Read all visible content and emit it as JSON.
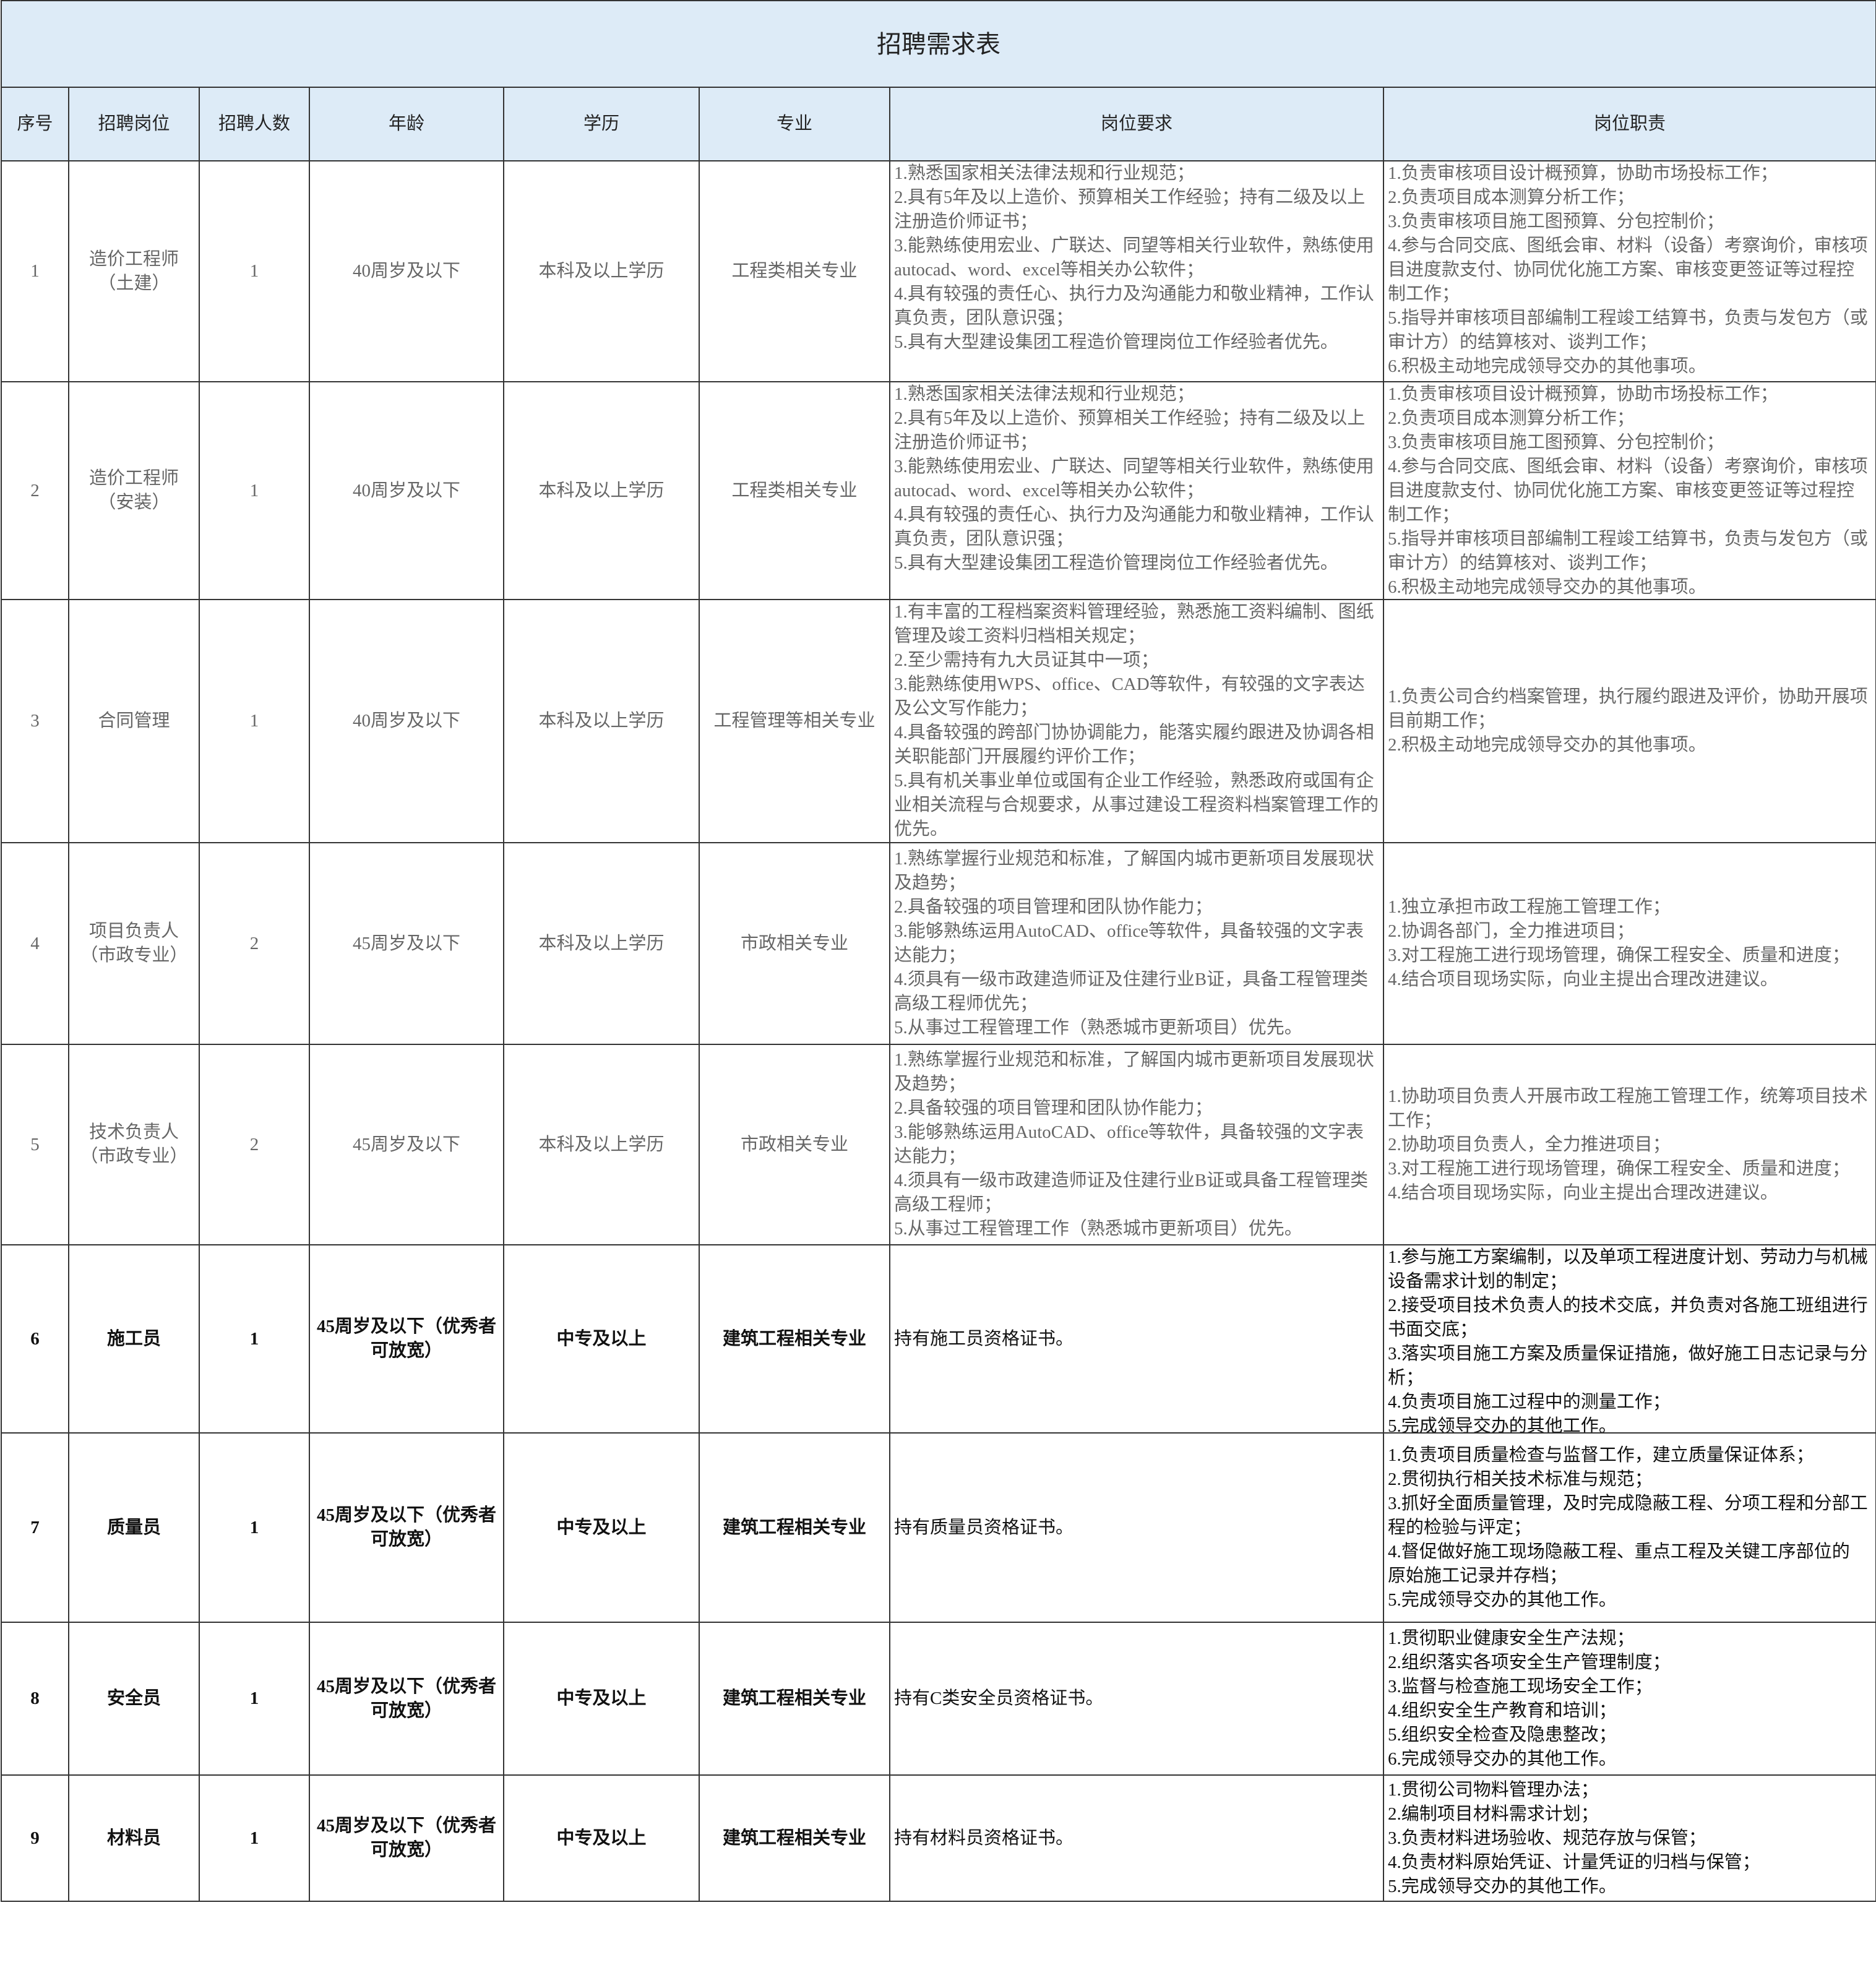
{
  "title": "招聘需求表",
  "headers": [
    "序号",
    "招聘岗位",
    "招聘人数",
    "年龄",
    "学历",
    "专业",
    "岗位要求",
    "岗位职责"
  ],
  "rows": [
    {
      "no": "1",
      "position": [
        "造价工程师",
        "（土建）"
      ],
      "count": "1",
      "age": "40周岁及以下",
      "education": "本科及以上学历",
      "major": "工程类相关专业",
      "requirements": [
        "1.熟悉国家相关法律法规和行业规范；",
        "2.具有5年及以上造价、预算相关工作经验；持有二级及以上注册造价师证书；",
        "3.能熟练使用宏业、广联达、同望等相关行业软件，熟练使用autocad、word、excel等相关办公软件；",
        "4.具有较强的责任心、执行力及沟通能力和敬业精神，工作认真负责，团队意识强；",
        "5.具有大型建设集团工程造价管理岗位工作经验者优先。"
      ],
      "duties": [
        "1.负责审核项目设计概预算，协助市场投标工作；",
        "2.负责项目成本测算分析工作；",
        "3.负责审核项目施工图预算、分包控制价；",
        "4.参与合同交底、图纸会审、材料（设备）考察询价，审核项目进度款支付、协同优化施工方案、审核变更签证等过程控制工作；",
        "5.指导并审核项目部编制工程竣工结算书，负责与发包方（或审计方）的结算核对、谈判工作；",
        "6.积极主动地完成领导交办的其他事项。"
      ]
    },
    {
      "no": "2",
      "position": [
        "造价工程师",
        "（安装）"
      ],
      "count": "1",
      "age": "40周岁及以下",
      "education": "本科及以上学历",
      "major": "工程类相关专业",
      "requirements": [
        "1.熟悉国家相关法律法规和行业规范；",
        "2.具有5年及以上造价、预算相关工作经验；持有二级及以上注册造价师证书；",
        "3.能熟练使用宏业、广联达、同望等相关行业软件，熟练使用autocad、word、excel等相关办公软件；",
        "4.具有较强的责任心、执行力及沟通能力和敬业精神，工作认真负责，团队意识强；",
        "5.具有大型建设集团工程造价管理岗位工作经验者优先。"
      ],
      "duties": [
        "1.负责审核项目设计概预算，协助市场投标工作；",
        "2.负责项目成本测算分析工作；",
        "3.负责审核项目施工图预算、分包控制价；",
        "4.参与合同交底、图纸会审、材料（设备）考察询价，审核项目进度款支付、协同优化施工方案、审核变更签证等过程控制工作；",
        "5.指导并审核项目部编制工程竣工结算书，负责与发包方（或审计方）的结算核对、谈判工作；",
        "6.积极主动地完成领导交办的其他事项。"
      ]
    },
    {
      "no": "3",
      "position": [
        "合同管理"
      ],
      "count": "1",
      "age": "40周岁及以下",
      "education": "本科及以上学历",
      "major": "工程管理等相关专业",
      "requirements": [
        "1.有丰富的工程档案资料管理经验，熟悉施工资料编制、图纸管理及竣工资料归档相关规定；",
        "2.至少需持有九大员证其中一项；",
        "3.能熟练使用WPS、office、CAD等软件，有较强的文字表达及公文写作能力；",
        "4.具备较强的跨部门协协调能力，能落实履约跟进及协调各相关职能部门开展履约评价工作；",
        "5.具有机关事业单位或国有企业工作经验，熟悉政府或国有企业相关流程与合规要求，从事过建设工程资料档案管理工作的优先。"
      ],
      "duties": [
        "1.负责公司合约档案管理，执行履约跟进及评价，协助开展项目前期工作；",
        "2.积极主动地完成领导交办的其他事项。"
      ]
    },
    {
      "no": "4",
      "position": [
        "项目负责人",
        "（市政专业）"
      ],
      "count": "2",
      "age": "45周岁及以下",
      "education": "本科及以上学历",
      "major": "市政相关专业",
      "requirements": [
        "1.熟练掌握行业规范和标准，了解国内城市更新项目发展现状及趋势；",
        "2.具备较强的项目管理和团队协作能力；",
        "3.能够熟练运用AutoCAD、office等软件，具备较强的文字表达能力；",
        "4.须具有一级市政建造师证及住建行业B证，具备工程管理类高级工程师优先；",
        "5.从事过工程管理工作（熟悉城市更新项目）优先。"
      ],
      "duties": [
        "1.独立承担市政工程施工管理工作；",
        "2.协调各部门，全力推进项目；",
        "3.对工程施工进行现场管理，确保工程安全、质量和进度；",
        "4.结合项目现场实际，向业主提出合理改进建议。"
      ]
    },
    {
      "no": "5",
      "position": [
        "技术负责人",
        "（市政专业）"
      ],
      "count": "2",
      "age": "45周岁及以下",
      "education": "本科及以上学历",
      "major": "市政相关专业",
      "requirements": [
        "1.熟练掌握行业规范和标准，了解国内城市更新项目发展现状及趋势；",
        "2.具备较强的项目管理和团队协作能力；",
        "3.能够熟练运用AutoCAD、office等软件，具备较强的文字表达能力；",
        "4.须具有一级市政建造师证及住建行业B证或具备工程管理类高级工程师；",
        "5.从事过工程管理工作（熟悉城市更新项目）优先。"
      ],
      "duties": [
        "1.协助项目负责人开展市政工程施工管理工作，统筹项目技术工作；",
        "2.协助项目负责人，全力推进项目；",
        "3.对工程施工进行现场管理，确保工程安全、质量和进度；",
        "4.结合项目现场实际，向业主提出合理改进建议。"
      ]
    },
    {
      "no": "6",
      "position": [
        "施工员"
      ],
      "count": "1",
      "age": "45周岁及以下（优秀者可放宽）",
      "education": "中专及以上",
      "major": "建筑工程相关专业",
      "requirements": [
        "持有施工员资格证书。"
      ],
      "duties": [
        "1.参与施工方案编制，以及单项工程进度计划、劳动力与机械设备需求计划的制定；",
        "2.接受项目技术负责人的技术交底，并负责对各施工班组进行书面交底；",
        "3.落实项目施工方案及质量保证措施，做好施工日志记录与分析；",
        "4.负责项目施工过程中的测量工作；",
        "5.完成领导交办的其他工作。"
      ]
    },
    {
      "no": "7",
      "position": [
        "质量员"
      ],
      "count": "1",
      "age": "45周岁及以下（优秀者可放宽）",
      "education": "中专及以上",
      "major": "建筑工程相关专业",
      "requirements": [
        "持有质量员资格证书。"
      ],
      "duties": [
        "1.负责项目质量检查与监督工作，建立质量保证体系；",
        "2.贯彻执行相关技术标准与规范；",
        "3.抓好全面质量管理，及时完成隐蔽工程、分项工程和分部工程的检验与评定；",
        "4.督促做好施工现场隐蔽工程、重点工程及关键工序部位的",
        "原始施工记录并存档；",
        "5.完成领导交办的其他工作。"
      ]
    },
    {
      "no": "8",
      "position": [
        "安全员"
      ],
      "count": "1",
      "age": "45周岁及以下（优秀者可放宽）",
      "education": "中专及以上",
      "major": "建筑工程相关专业",
      "requirements": [
        "持有C类安全员资格证书。"
      ],
      "duties": [
        "1.贯彻职业健康安全生产法规；",
        "2.组织落实各项安全生产管理制度；",
        "3.监督与检查施工现场安全工作；",
        "4.组织安全生产教育和培训；",
        "5.组织安全检查及隐患整改；",
        "6.完成领导交办的其他工作。"
      ]
    },
    {
      "no": "9",
      "position": [
        "材料员"
      ],
      "count": "1",
      "age": "45周岁及以下（优秀者可放宽）",
      "education": "中专及以上",
      "major": "建筑工程相关专业",
      "requirements": [
        "持有材料员资格证书。"
      ],
      "duties": [
        "1.贯彻公司物料管理办法；",
        "2.编制项目材料需求计划；",
        "3.负责材料进场验收、规范存放与保管；",
        "4.负责材料原始凭证、计量凭证的归档与保管；",
        "5.完成领导交办的其他工作。"
      ]
    }
  ]
}
